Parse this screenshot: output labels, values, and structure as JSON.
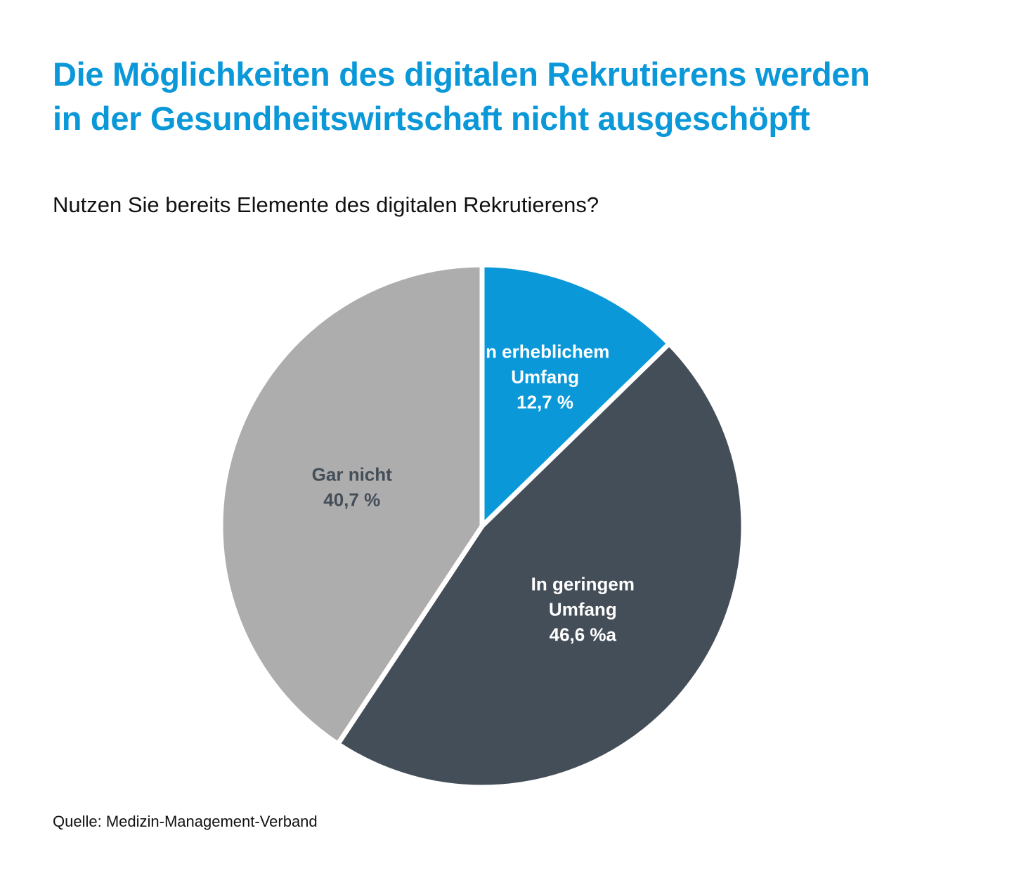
{
  "title_line1": "Die Möglichkeiten des digitalen Rekrutierens werden",
  "title_line2": "in der Gesundheitswirtschaft nicht ausgeschöpft",
  "question": "Nutzen Sie bereits Elemente des digitalen Rekrutierens?",
  "source": "Quelle: Medizin-Management-Verband",
  "chart_data": {
    "type": "pie",
    "title": "Nutzen Sie bereits Elemente des digitalen Rekrutierens?",
    "start": "top, clockwise",
    "slices": [
      {
        "label_lines": [
          "In erheblichem",
          "Umfang"
        ],
        "value": 12.7,
        "value_text": "12,7 %",
        "color": "#0a98d9",
        "text_color": "#ffffff"
      },
      {
        "label_lines": [
          "In geringem",
          "Umfang"
        ],
        "value": 46.6,
        "value_text": "46,6 %a",
        "color": "#444e58",
        "text_color": "#ffffff"
      },
      {
        "label_lines": [
          "Gar nicht"
        ],
        "value": 40.7,
        "value_text": "40,7 %",
        "color": "#adadad",
        "text_color": "#444e58"
      }
    ]
  }
}
